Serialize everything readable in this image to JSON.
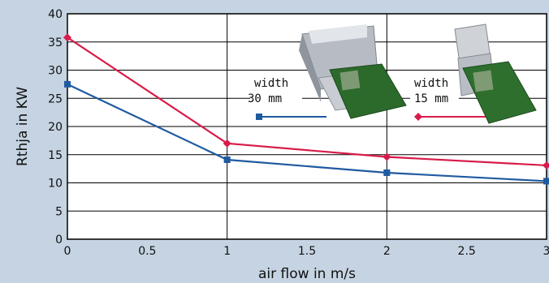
{
  "chart_data": {
    "type": "line",
    "xlabel": "air flow in m/s",
    "ylabel": "Rthja in KW",
    "xlim": [
      0,
      3
    ],
    "ylim": [
      0,
      40
    ],
    "x_ticks": [
      "0",
      "0.5",
      "1",
      "1.5",
      "2",
      "2.5",
      "3"
    ],
    "y_ticks": [
      "0",
      "5",
      "10",
      "15",
      "20",
      "25",
      "30",
      "35",
      "40"
    ],
    "grid": true,
    "series": [
      {
        "name": "width 30 mm",
        "color": "#1f5aa0",
        "marker": "square",
        "points": [
          [
            0,
            27.5
          ],
          [
            1,
            14.1
          ],
          [
            2,
            11.8
          ],
          [
            3,
            10.3
          ]
        ]
      },
      {
        "name": "width 15 mm",
        "color": "#d81b4a",
        "marker": "diamond",
        "points": [
          [
            0,
            35.8
          ],
          [
            1,
            17
          ],
          [
            2,
            14.6
          ],
          [
            3,
            13.1
          ]
        ]
      }
    ],
    "annotations": [
      {
        "line1": "width",
        "line2": "30 mm",
        "series": 0
      },
      {
        "line1": "width",
        "line2": "15 mm",
        "series": 1
      }
    ]
  },
  "images": [
    {
      "name": "heatsink-30mm-photo",
      "depicts": "aluminium heat sink with green circuit board"
    },
    {
      "name": "heatsink-15mm-photo",
      "depicts": "aluminium heat sink with green circuit board"
    }
  ]
}
